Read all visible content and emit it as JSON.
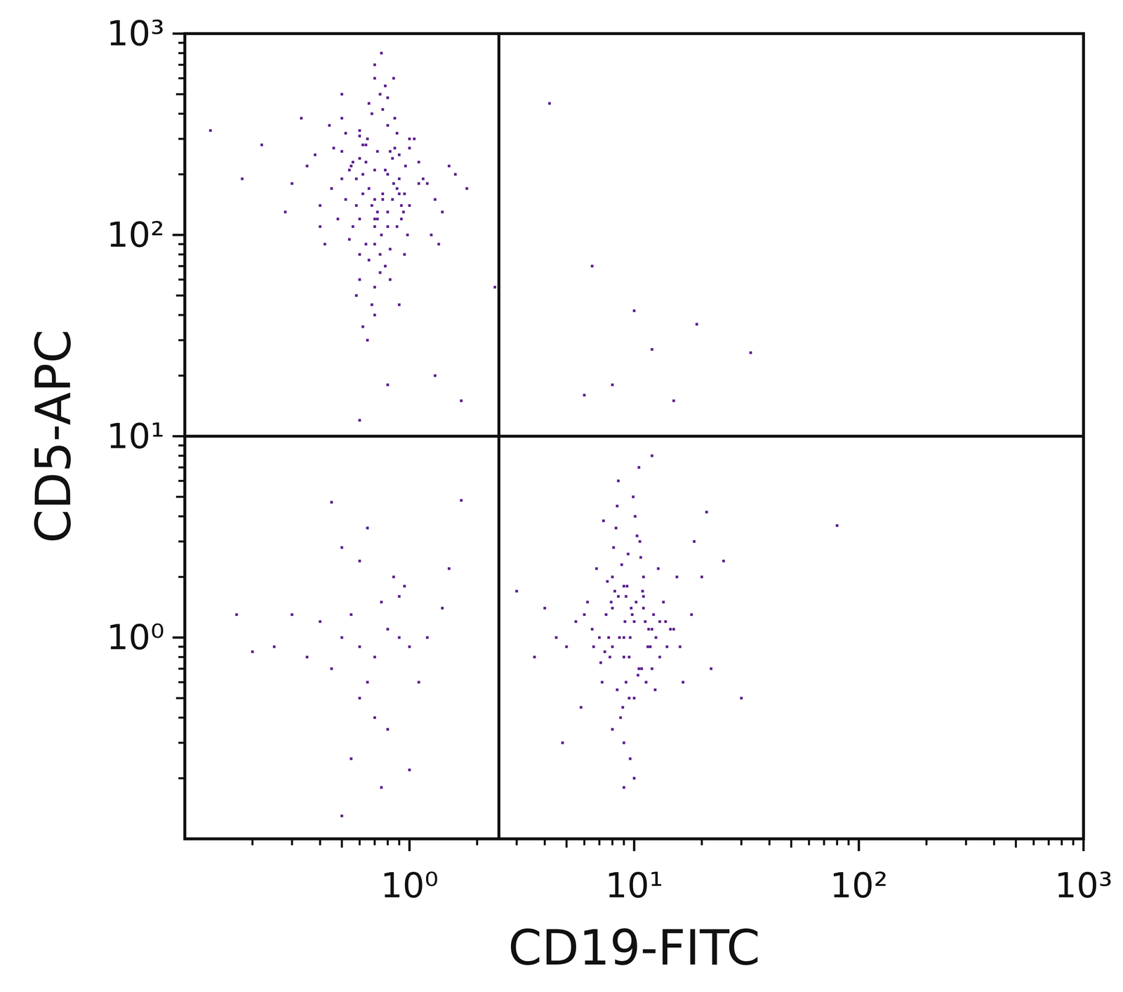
{
  "chart_data": {
    "type": "scatter",
    "x_label": "CD19-FITC",
    "y_label": "CD5-APC",
    "log": true,
    "color": "#5b1e8f",
    "marker": "square",
    "xlim": [
      0.1,
      1000
    ],
    "ylim": [
      0.1,
      1000
    ],
    "xticks": [
      {
        "value": 1,
        "label": "10⁰"
      },
      {
        "value": 10,
        "label": "10¹"
      },
      {
        "value": 100,
        "label": "10²"
      },
      {
        "value": 1000,
        "label": "10³"
      }
    ],
    "yticks": [
      {
        "value": 1,
        "label": "10⁰"
      },
      {
        "value": 10,
        "label": "10¹"
      },
      {
        "value": 100,
        "label": "10²"
      },
      {
        "value": 1000,
        "label": "10³"
      }
    ],
    "gate": {
      "x": 2.5,
      "y": 10
    },
    "x": [
      0.7,
      0.8,
      0.6,
      0.9,
      0.75,
      0.65,
      0.85,
      0.55,
      1.0,
      0.7,
      0.5,
      0.95,
      0.8,
      0.6,
      0.72,
      0.88,
      0.68,
      0.78,
      0.58,
      1.1,
      0.45,
      0.62,
      0.82,
      0.92,
      0.7,
      0.52,
      0.76,
      0.66,
      0.98,
      0.84,
      0.4,
      1.2,
      0.64,
      0.74,
      0.56,
      0.86,
      0.7,
      0.6,
      0.9,
      0.8,
      0.35,
      1.3,
      0.5,
      0.66,
      0.78,
      0.94,
      0.62,
      0.72,
      0.54,
      1.05,
      0.48,
      0.7,
      0.88,
      0.6,
      0.82,
      0.76,
      0.68,
      1.15,
      0.44,
      0.58,
      0.3,
      1.4,
      0.64,
      0.8,
      0.7,
      0.9,
      0.56,
      0.74,
      0.62,
      0.86,
      0.42,
      1.0,
      0.52,
      0.68,
      0.96,
      0.72,
      0.6,
      0.84,
      0.78,
      0.66,
      0.38,
      1.25,
      0.5,
      0.74,
      0.58,
      0.88,
      0.7,
      0.64,
      1.1,
      0.8,
      0.28,
      1.6,
      0.46,
      0.92,
      0.62,
      0.76,
      0.54,
      0.7,
      1.35,
      0.82,
      0.22,
      1.8,
      0.33,
      1.5,
      0.65,
      0.85,
      0.75,
      0.6,
      1.0,
      0.7,
      0.13,
      0.18,
      1.3,
      0.5,
      0.9,
      0.4,
      1.7,
      0.8,
      0.6,
      0.95,
      9,
      10,
      8,
      11,
      9.5,
      8.5,
      12,
      7.5,
      10.5,
      9,
      7,
      13,
      8,
      11.5,
      9.2,
      10.2,
      8.8,
      12.5,
      7.8,
      9.8,
      6.5,
      14,
      8.2,
      10.8,
      9.4,
      11.2,
      7.2,
      13.5,
      8.6,
      10,
      6,
      15,
      9,
      11,
      8,
      12,
      7.6,
      9.6,
      10.6,
      8.4,
      5.5,
      16,
      9.2,
      10.4,
      7.4,
      12.8,
      8.9,
      11.6,
      9.7,
      8.1,
      5,
      18,
      9.5,
      10.9,
      7.9,
      13,
      8.3,
      11.3,
      9.1,
      10.1,
      4.5,
      20,
      7.1,
      12.2,
      8.7,
      10.7,
      9.3,
      11.8,
      8,
      9.9,
      4,
      22,
      6.8,
      14.5,
      9,
      10.3,
      7.7,
      12.4,
      8.5,
      11,
      3.6,
      25,
      6.2,
      16.5,
      8.4,
      13.8,
      9.6,
      10.5,
      5.8,
      18.5,
      3,
      30,
      4.8,
      21,
      6.6,
      15.5,
      10,
      12,
      7.3,
      9,
      0.5,
      0.6,
      0.7,
      0.8,
      0.55,
      0.65,
      0.9,
      1.0,
      0.45,
      0.75,
      0.4,
      1.2,
      0.35,
      0.3,
      0.85,
      0.6,
      1.4,
      0.5,
      0.7,
      0.25,
      0.95,
      0.2,
      1.1,
      0.65,
      0.8,
      1.5,
      0.55,
      0.45,
      1.0,
      0.17,
      0.75,
      1.7,
      0.5,
      0.6,
      0.9,
      4.2,
      6.5,
      10,
      19,
      12,
      33,
      15,
      6,
      8,
      80,
      2.4
    ],
    "values": [
      150,
      200,
      120,
      250,
      100,
      300,
      180,
      220,
      140,
      90,
      260,
      160,
      350,
      80,
      130,
      110,
      400,
      70,
      190,
      230,
      170,
      280,
      60,
      120,
      210,
      320,
      150,
      450,
      100,
      240,
      140,
      180,
      90,
      500,
      110,
      270,
      55,
      330,
      190,
      130,
      220,
      150,
      380,
      75,
      210,
      130,
      160,
      260,
      95,
      300,
      120,
      600,
      170,
      240,
      85,
      420,
      140,
      190,
      350,
      50,
      180,
      130,
      280,
      110,
      700,
      160,
      230,
      65,
      200,
      380,
      90,
      270,
      150,
      45,
      220,
      120,
      310,
      150,
      550,
      170,
      250,
      100,
      190,
      80,
      140,
      320,
      40,
      230,
      180,
      480,
      130,
      200,
      270,
      140,
      35,
      160,
      210,
      110,
      90,
      260,
      280,
      170,
      380,
      220,
      30,
      600,
      800,
      60,
      300,
      120,
      330,
      190,
      20,
      500,
      45,
      110,
      15,
      18,
      12,
      80,
      1.0,
      1.2,
      0.9,
      1.4,
      0.8,
      1.6,
      1.1,
      1.3,
      0.7,
      1.8,
      1.0,
      1.2,
      2.0,
      0.9,
      0.6,
      1.5,
      2.3,
      1.0,
      0.8,
      1.3,
      1.1,
      0.9,
      1.7,
      0.7,
      2.6,
      1.2,
      0.6,
      1.5,
      1.0,
      0.5,
      1.3,
      1.1,
      0.8,
      2.0,
      1.4,
      0.7,
      1.9,
      1.0,
      3.0,
      0.55,
      1.2,
      0.9,
      1.6,
      0.65,
      0.85,
      2.2,
      0.45,
      1.1,
      1.4,
      2.8,
      0.9,
      1.3,
      0.5,
      1.7,
      1.5,
      0.8,
      3.5,
      0.6,
      1.2,
      4.0,
      1.0,
      2.0,
      0.75,
      1.3,
      0.4,
      2.5,
      1.8,
      0.9,
      0.35,
      5.0,
      1.4,
      0.7,
      2.2,
      1.1,
      0.3,
      3.2,
      1.0,
      0.55,
      6.0,
      1.6,
      0.8,
      2.4,
      1.5,
      0.6,
      4.5,
      1.2,
      0.25,
      7.0,
      0.45,
      3.0,
      1.7,
      0.5,
      0.3,
      4.2,
      0.9,
      2.0,
      0.2,
      8.0,
      3.8,
      0.18,
      1.0,
      0.9,
      0.8,
      1.1,
      1.3,
      0.6,
      1.0,
      0.9,
      0.7,
      1.5,
      1.2,
      1.0,
      0.8,
      1.3,
      2.0,
      0.5,
      1.4,
      2.8,
      0.4,
      0.9,
      1.8,
      0.85,
      0.6,
      3.5,
      0.35,
      2.2,
      0.25,
      4.7,
      0.22,
      1.3,
      0.18,
      4.8,
      0.13,
      2.4,
      1.6,
      450,
      70,
      42,
      36,
      27,
      26,
      15,
      16,
      18,
      3.6,
      55
    ]
  }
}
